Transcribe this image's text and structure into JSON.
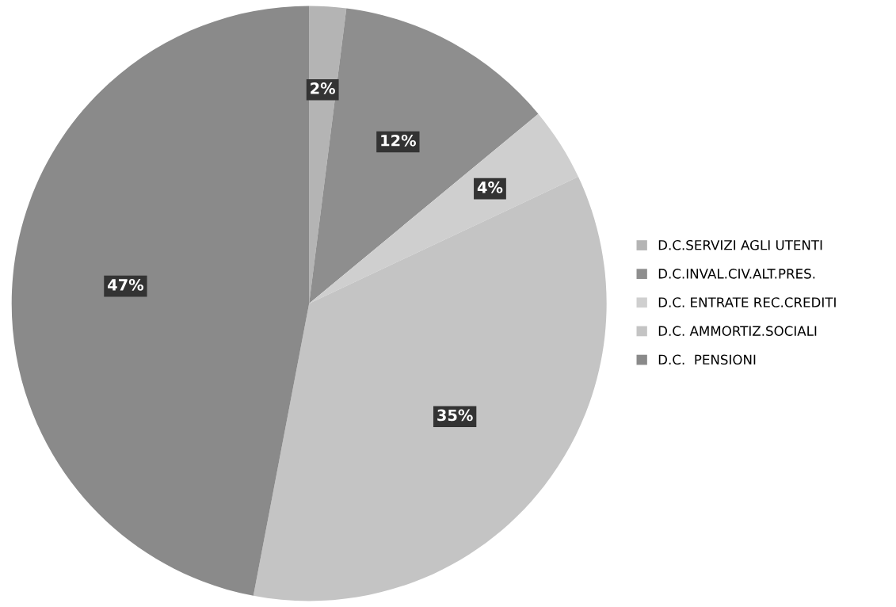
{
  "chart_data": {
    "type": "pie",
    "categories": [
      "D.C.SERVIZI AGLI UTENTI",
      "D.C.INVAL.CIV.ALT.PRES.",
      "D.C. ENTRATE REC.CREDITI",
      "D.C. AMMORTIZ.SOCIALI",
      "D.C.  PENSIONI"
    ],
    "values": [
      2,
      12,
      4,
      35,
      47
    ],
    "colors": [
      "#b4b4b4",
      "#8e8e8e",
      "#cfcfcf",
      "#c4c4c4",
      "#8a8a8a"
    ],
    "value_labels": [
      "2%",
      "12%",
      "4%",
      "35%",
      "47%"
    ],
    "legend": "right"
  }
}
